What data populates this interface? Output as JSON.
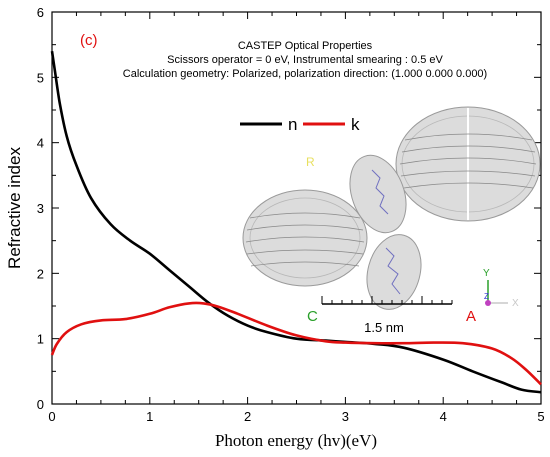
{
  "panel_label": "(c)",
  "header": {
    "line1": "CASTEP Optical Properties",
    "line2": "Scissors operator = 0 eV, Instrumental smearing : 0.5 eV",
    "line3": "Calculation geometry: Polarized, polarization direction: (1.000 0.000 0.000)"
  },
  "inset": {
    "scale_label": "1.5 nm",
    "tag_R": "R",
    "tag_C": "C",
    "tag_A": "A",
    "axis_y": "Y",
    "axis_z": "Z",
    "axis_x": "X"
  },
  "colors": {
    "n": "#000000",
    "k": "#e01010",
    "panel_label": "#e01010",
    "tag_R": "#e8e060",
    "tag_C": "#2aa02a",
    "tag_A": "#e01010",
    "axis_y": "#2aa02a",
    "axis_z": "#3030d0",
    "axis_x": "#c8c8c8"
  },
  "chart_data": {
    "type": "line",
    "title": "",
    "xlabel": "Photon energy (hv)(eV)",
    "ylabel": "Refractive index",
    "xlim": [
      0,
      5
    ],
    "ylim": [
      0,
      6
    ],
    "xticks": [
      "0",
      "1",
      "2",
      "3",
      "4",
      "5"
    ],
    "yticks": [
      "0",
      "1",
      "2",
      "3",
      "4",
      "5",
      "6"
    ],
    "legend": "top-center",
    "series": [
      {
        "name": "n",
        "x": [
          0,
          0.03,
          0.08,
          0.15,
          0.25,
          0.4,
          0.6,
          0.8,
          1.0,
          1.2,
          1.4,
          1.6,
          1.8,
          2.0,
          2.2,
          2.5,
          2.8,
          3.0,
          3.3,
          3.6,
          4.0,
          4.3,
          4.6,
          4.8,
          5.0
        ],
        "y": [
          5.4,
          5.1,
          4.6,
          4.1,
          3.65,
          3.15,
          2.75,
          2.5,
          2.3,
          2.05,
          1.8,
          1.55,
          1.35,
          1.2,
          1.1,
          1.0,
          0.97,
          0.95,
          0.92,
          0.86,
          0.68,
          0.5,
          0.33,
          0.22,
          0.18
        ]
      },
      {
        "name": "k",
        "x": [
          0,
          0.05,
          0.15,
          0.3,
          0.5,
          0.75,
          1.0,
          1.2,
          1.4,
          1.55,
          1.7,
          1.9,
          2.2,
          2.5,
          2.8,
          3.0,
          3.3,
          3.6,
          3.9,
          4.2,
          4.5,
          4.7,
          4.85,
          5.0
        ],
        "y": [
          0.75,
          0.92,
          1.1,
          1.22,
          1.28,
          1.3,
          1.38,
          1.48,
          1.54,
          1.54,
          1.49,
          1.38,
          1.2,
          1.05,
          0.96,
          0.94,
          0.93,
          0.93,
          0.94,
          0.93,
          0.85,
          0.7,
          0.52,
          0.3
        ]
      }
    ]
  }
}
